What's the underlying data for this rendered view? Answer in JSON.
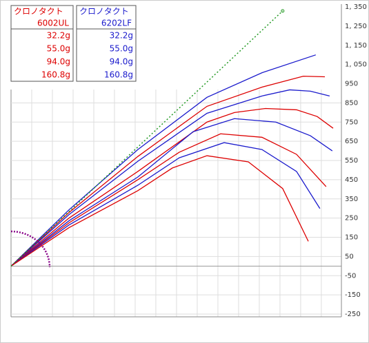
{
  "tables": [
    {
      "title": "クロノタクト",
      "model": "6002UL",
      "color": "#dd0000",
      "rows": [
        "32.2g",
        "55.0g",
        "94.0g",
        "160.8g"
      ]
    },
    {
      "title": "クロノタクト",
      "model": "6202LF",
      "color": "#1a1acc",
      "rows": [
        "32.2g",
        "55.0g",
        "94.0g",
        "160.8g"
      ]
    }
  ],
  "chart_data": {
    "type": "line",
    "xlim": [
      0,
      1597
    ],
    "ylim": [
      -257,
      1350
    ],
    "xticks": [
      0,
      100,
      200,
      300,
      400,
      500,
      600,
      700,
      800,
      900,
      1000,
      1100,
      1200,
      1300,
      1400,
      1500
    ],
    "yticks": [
      {
        "value": 1350,
        "label": "1, 350"
      },
      {
        "value": 1250,
        "label": "1, 250"
      },
      {
        "value": 1150,
        "label": "1, 150"
      },
      {
        "value": 1050,
        "label": "1, 050"
      },
      950,
      850,
      750,
      650,
      550,
      450,
      350,
      250,
      150,
      50,
      -50,
      -150,
      -250
    ],
    "grid": true,
    "series": [
      {
        "color": "#1a1acc",
        "x": [
          0,
          280,
          613,
          947,
          1213,
          1473
        ],
        "values": [
          0,
          293,
          607,
          879,
          1007,
          1100
        ]
      },
      {
        "color": "#dd0000",
        "x": [
          0,
          280,
          613,
          947,
          1213,
          1413,
          1517
        ],
        "values": [
          0,
          279,
          571,
          832,
          932,
          989,
          986
        ]
      },
      {
        "color": "#1a1acc",
        "x": [
          0,
          280,
          613,
          947,
          1213,
          1347,
          1447,
          1540
        ],
        "values": [
          0,
          268,
          546,
          796,
          886,
          918,
          911,
          886
        ]
      },
      {
        "color": "#dd0000",
        "x": [
          0,
          280,
          613,
          947,
          1080,
          1230,
          1380,
          1480,
          1557
        ],
        "values": [
          0,
          250,
          493,
          750,
          800,
          821,
          814,
          779,
          718
        ]
      },
      {
        "color": "#1a1acc",
        "x": [
          0,
          280,
          613,
          880,
          1080,
          1280,
          1447,
          1553
        ],
        "values": [
          0,
          236,
          464,
          700,
          768,
          750,
          679,
          600
        ]
      },
      {
        "color": "#dd0000",
        "x": [
          0,
          280,
          613,
          813,
          1013,
          1213,
          1380,
          1523
        ],
        "values": [
          0,
          225,
          450,
          593,
          689,
          671,
          582,
          414
        ]
      },
      {
        "color": "#1a1acc",
        "x": [
          0,
          280,
          613,
          813,
          1030,
          1213,
          1380,
          1493
        ],
        "values": [
          0,
          214,
          421,
          564,
          643,
          607,
          493,
          300
        ]
      },
      {
        "color": "#dd0000",
        "x": [
          0,
          280,
          613,
          780,
          947,
          1147,
          1313,
          1437
        ],
        "values": [
          0,
          200,
          393,
          511,
          575,
          543,
          404,
          129
        ]
      },
      {
        "color": "#229922",
        "style": "dotted",
        "x": [
          0,
          1313
        ],
        "values": [
          0,
          1329
        ]
      }
    ]
  }
}
